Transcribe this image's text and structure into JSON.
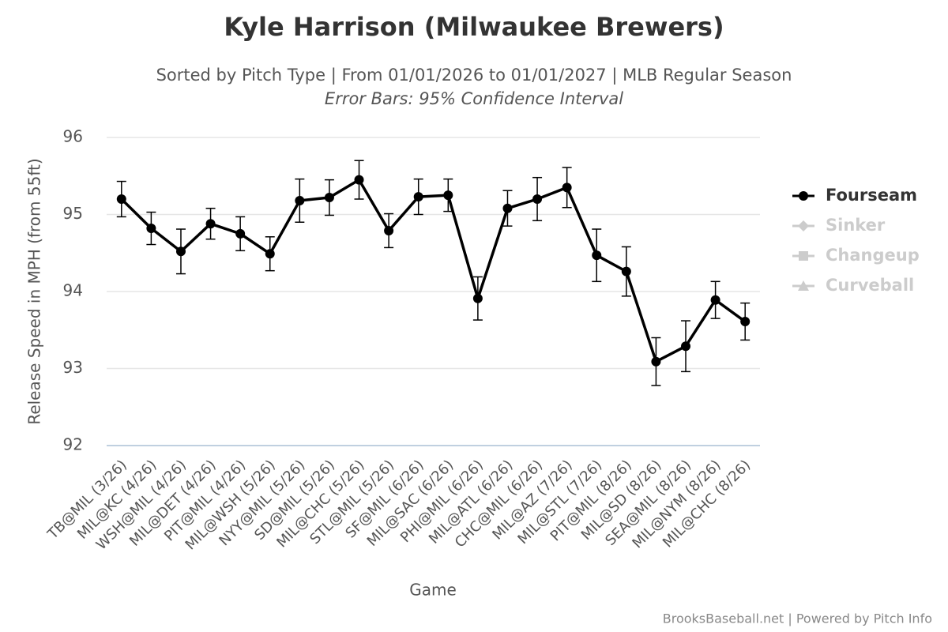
{
  "chart_data": {
    "type": "line",
    "title": "Kyle Harrison (Milwaukee Brewers)",
    "subtitle": "Sorted by Pitch Type | From 01/01/2026 to 01/01/2027 | MLB Regular Season",
    "note": "Error Bars: 95% Confidence Interval",
    "xlabel": "Game",
    "ylabel": "Release Speed in MPH (from 55ft)",
    "credit": "BrooksBaseball.net | Powered by Pitch Info",
    "categories": [
      "TB@MIL (3/26)",
      "MIL@KC (4/26)",
      "WSH@MIL (4/26)",
      "MIL@DET (4/26)",
      "PIT@MIL (4/26)",
      "MIL@WSH (5/26)",
      "NYY@MIL (5/26)",
      "SD@MIL (5/26)",
      "MIL@CHC (5/26)",
      "STL@MIL (5/26)",
      "SF@MIL (6/26)",
      "MIL@SAC (6/26)",
      "PHI@MIL (6/26)",
      "MIL@ATL (6/26)",
      "CHC@MIL (6/26)",
      "MIL@AZ (7/26)",
      "MIL@STL (7/26)",
      "PIT@MIL (8/26)",
      "MIL@SD (8/26)",
      "SEA@MIL (8/26)",
      "MIL@NYM (8/26)",
      "MIL@CHC (8/26)"
    ],
    "series": [
      {
        "name": "Fourseam",
        "color": "#000000",
        "marker": "circle",
        "visible": true,
        "values": [
          95.2,
          94.82,
          94.52,
          94.88,
          94.75,
          94.49,
          95.18,
          95.22,
          95.45,
          94.79,
          95.23,
          95.25,
          93.91,
          95.08,
          95.2,
          95.35,
          94.47,
          94.26,
          93.09,
          93.29,
          93.89,
          93.61
        ],
        "errors": [
          0.23,
          0.21,
          0.29,
          0.2,
          0.22,
          0.22,
          0.28,
          0.23,
          0.25,
          0.22,
          0.23,
          0.21,
          0.28,
          0.23,
          0.28,
          0.26,
          0.34,
          0.32,
          0.31,
          0.33,
          0.24,
          0.24
        ]
      },
      {
        "name": "Sinker",
        "color": "#cccccc",
        "marker": "diamond",
        "visible": false
      },
      {
        "name": "Changeup",
        "color": "#cccccc",
        "marker": "square",
        "visible": false
      },
      {
        "name": "Curveball",
        "color": "#cccccc",
        "marker": "triangle",
        "visible": false
      }
    ],
    "ylim": [
      92,
      96
    ],
    "yticks": [
      92,
      93,
      94,
      95,
      96
    ],
    "grid": true,
    "legend": "right"
  }
}
